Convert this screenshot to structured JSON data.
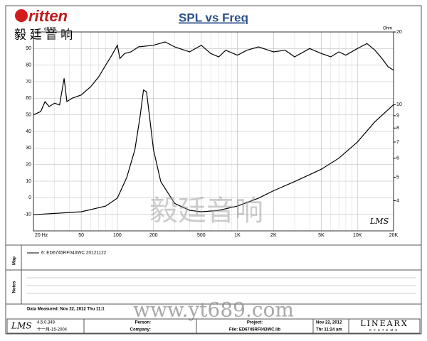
{
  "header": {
    "logo": "ritten",
    "logo_cn": "毅 廷 音 响",
    "watermark_cn": "毅廷音响",
    "watermark_url": "www.yt689.com"
  },
  "chart_data": {
    "type": "line",
    "title": "SPL vs Freq",
    "y_label": "dBSPL",
    "y2_label": "Ohm",
    "brand": "LMS",
    "xlim": [
      20,
      20000
    ],
    "x_log": true,
    "xticks": [
      {
        "value": 20,
        "label": "20 Hz"
      },
      50,
      100,
      200,
      500,
      {
        "value": 1000,
        "label": "1K"
      },
      {
        "value": 2000,
        "label": "2K"
      },
      {
        "value": 5000,
        "label": "5K"
      },
      {
        "value": 10000,
        "label": "10K"
      },
      {
        "value": 20000,
        "label": "20K"
      }
    ],
    "ylim": [
      -20,
      100
    ],
    "yticks": [
      -10,
      0,
      10,
      20,
      30,
      40,
      50,
      60,
      70,
      80,
      90
    ],
    "y2lim": [
      3,
      20
    ],
    "y2_log": true,
    "y2ticks": [
      4,
      5,
      6,
      7,
      8,
      9,
      10,
      20
    ],
    "grid": true,
    "series": [
      {
        "name": "6: ED6745RF043WC 20121122",
        "color": "#000000",
        "x": [
          20,
          23,
          25,
          27,
          30,
          33,
          36,
          38,
          42,
          50,
          60,
          70,
          80,
          90,
          100,
          105,
          115,
          130,
          150,
          200,
          250,
          300,
          400,
          500,
          600,
          700,
          800,
          1000,
          1200,
          1500,
          2000,
          2500,
          3000,
          4000,
          5000,
          6000,
          7000,
          8000,
          10000,
          12000,
          14000,
          16000,
          18000,
          20000
        ],
        "values": [
          50,
          52,
          58,
          55,
          57,
          56,
          72,
          58,
          60,
          62,
          67,
          73,
          80,
          86,
          92,
          84,
          87,
          88,
          91,
          92,
          94,
          91,
          88,
          92,
          87,
          85,
          89,
          86,
          89,
          91,
          88,
          89,
          85,
          90,
          87,
          85,
          88,
          86,
          90,
          93,
          89,
          84,
          79,
          77
        ]
      },
      {
        "axis": "y2",
        "color": "#000000",
        "x": [
          20,
          50,
          80,
          100,
          120,
          140,
          155,
          165,
          175,
          185,
          200,
          230,
          300,
          400,
          500,
          700,
          1000,
          1500,
          2000,
          3000,
          5000,
          7000,
          10000,
          14000,
          20000
        ],
        "values": [
          3.5,
          3.6,
          3.8,
          4.1,
          5.0,
          6.5,
          9,
          11.5,
          11.3,
          9,
          6.5,
          4.8,
          3.9,
          3.65,
          3.6,
          3.65,
          3.8,
          4.1,
          4.4,
          4.8,
          5.4,
          6.0,
          7.0,
          8.5,
          10
        ]
      }
    ]
  },
  "panels": {
    "map": "Map",
    "notes": "Notes",
    "measured": "Data Measured: Nov 22, 2012  Thu 11:1"
  },
  "footer": {
    "logo": "LMS",
    "version": "4.5.0.349",
    "date": "十一月-15-2004",
    "person": "Person:",
    "company": "Company:",
    "project": "Project:",
    "file": "File: ED6745RF043WC.lib",
    "date2": "Nov 22, 2012",
    "time": "Thr 11:24 am",
    "brand": "LINEARX",
    "brand_sub": "SYSTEMS"
  }
}
